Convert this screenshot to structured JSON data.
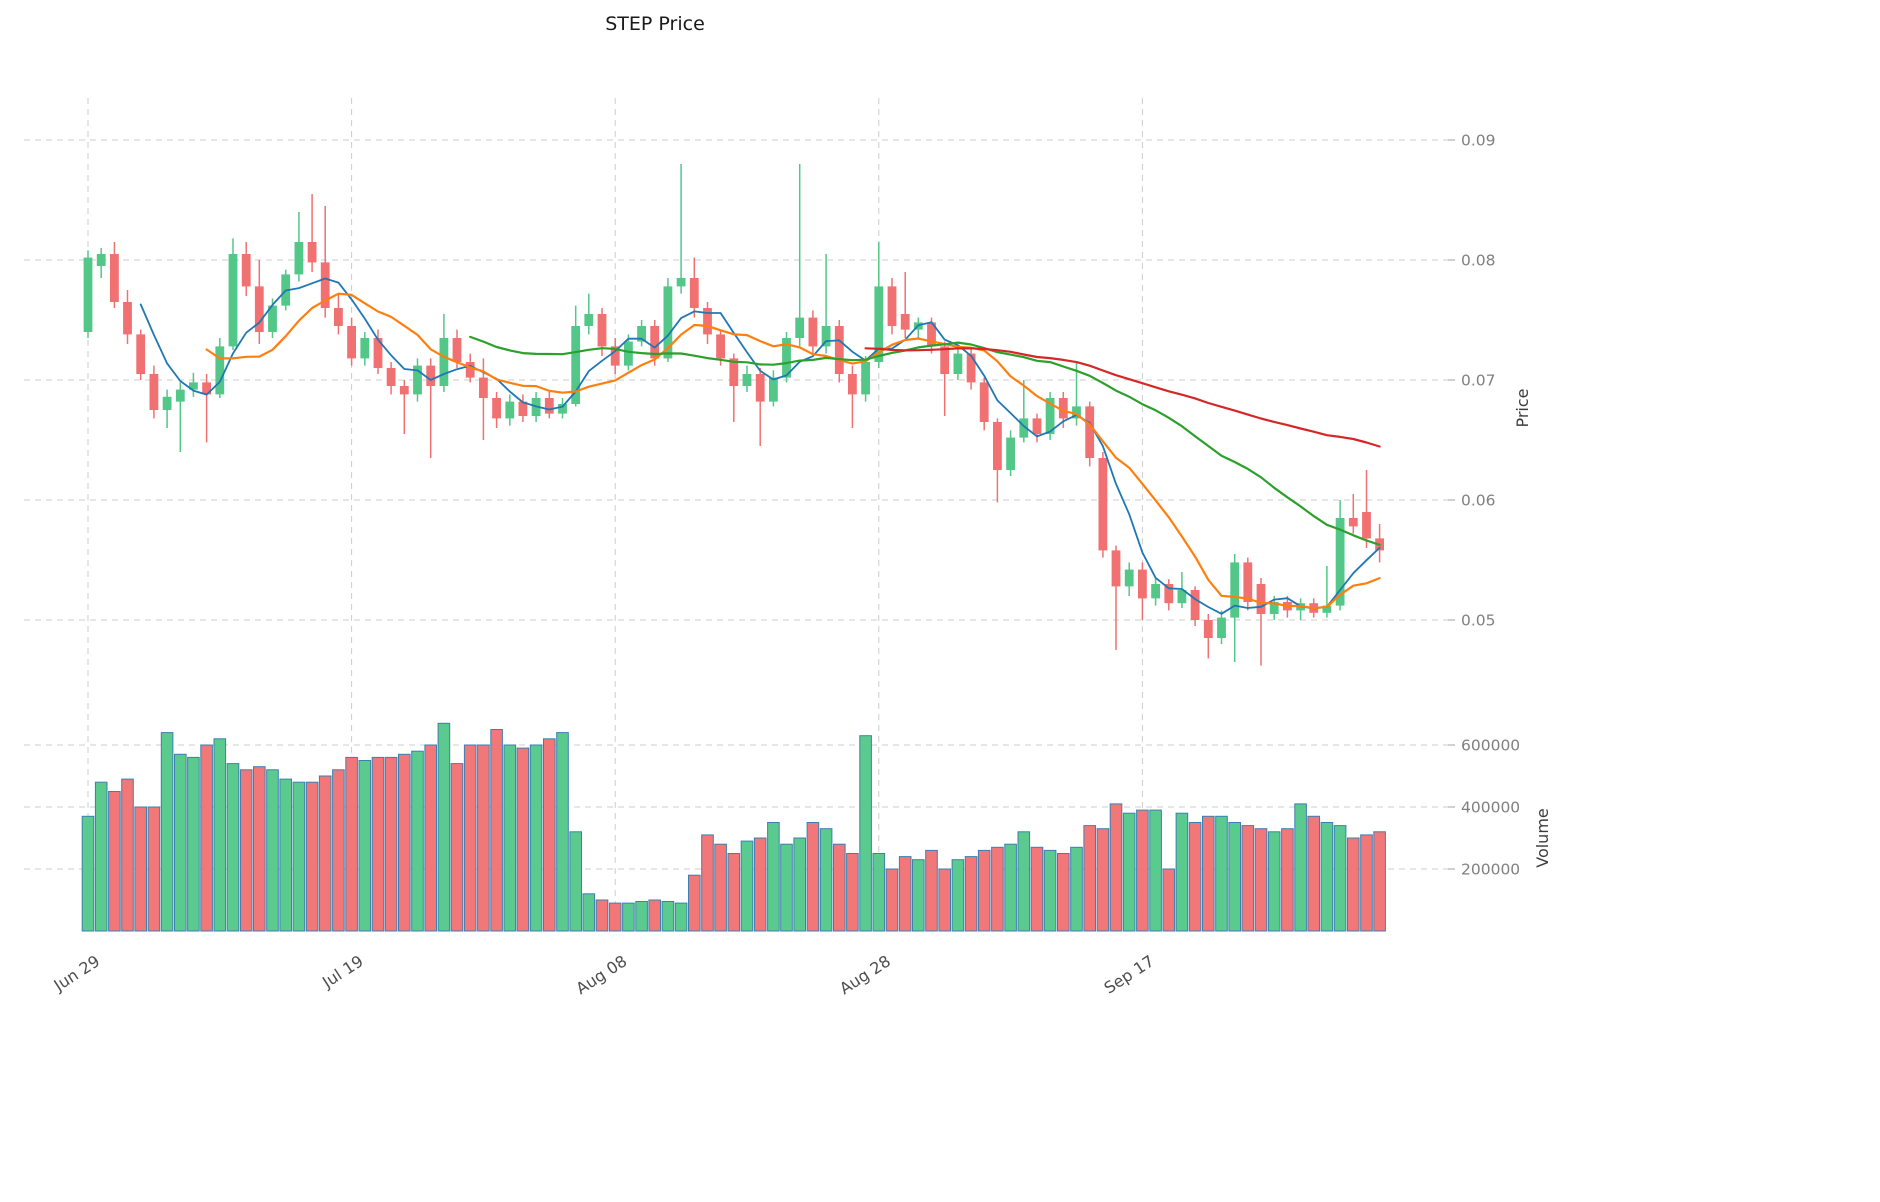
{
  "title": "STEP Price",
  "axes": {
    "price_label": "Price",
    "volume_label": "Volume"
  },
  "chart_data": {
    "type": "candlestick",
    "title": "STEP Price",
    "subtitle": "",
    "ylabel": "Price",
    "ylabel2": "Volume",
    "grid": true,
    "legend": "none",
    "x_tick_labels": [
      "Jun 29",
      "Jul 19",
      "Aug 08",
      "Aug 28",
      "Sep 17"
    ],
    "x_tick_indices": [
      0,
      20,
      40,
      60,
      80
    ],
    "price_ticks": [
      0.05,
      0.06,
      0.07,
      0.08,
      0.09
    ],
    "price_tick_labels": [
      "0.05",
      "0.06",
      "0.07",
      "0.08",
      "0.09"
    ],
    "price_ylim": [
      0.044,
      0.0925
    ],
    "volume_ticks": [
      200000,
      400000,
      600000
    ],
    "volume_tick_labels": [
      "200000",
      "400000",
      "600000"
    ],
    "volume_ylim": [
      0,
      700000
    ],
    "ma_windows": [
      5,
      10,
      30,
      60
    ],
    "ma_colors": [
      "#1f77b4",
      "#ff7f0e",
      "#2ca02c",
      "#d62728"
    ],
    "up_color": "#52c788",
    "down_color": "#f17072",
    "volume_edge_color": "#3c7fb1",
    "open": [
      0.074,
      0.0795,
      0.0805,
      0.0765,
      0.0738,
      0.0705,
      0.0675,
      0.0682,
      0.0692,
      0.0698,
      0.0688,
      0.0728,
      0.0805,
      0.0778,
      0.074,
      0.0762,
      0.0788,
      0.0815,
      0.0798,
      0.076,
      0.0745,
      0.0718,
      0.0735,
      0.071,
      0.0695,
      0.0688,
      0.0712,
      0.0695,
      0.0735,
      0.0715,
      0.0702,
      0.0685,
      0.0668,
      0.0682,
      0.067,
      0.0685,
      0.0672,
      0.068,
      0.0745,
      0.0755,
      0.0728,
      0.0712,
      0.0732,
      0.0745,
      0.0718,
      0.0778,
      0.0785,
      0.076,
      0.0738,
      0.0718,
      0.0695,
      0.0705,
      0.0682,
      0.0702,
      0.0735,
      0.0752,
      0.0728,
      0.0745,
      0.0705,
      0.0688,
      0.0715,
      0.0778,
      0.0755,
      0.0742,
      0.0748,
      0.0728,
      0.0705,
      0.0722,
      0.0698,
      0.0665,
      0.0625,
      0.0652,
      0.0668,
      0.0655,
      0.0685,
      0.0668,
      0.0678,
      0.0635,
      0.0558,
      0.0528,
      0.0542,
      0.0518,
      0.053,
      0.0514,
      0.0525,
      0.05,
      0.0485,
      0.0502,
      0.0548,
      0.053,
      0.0505,
      0.0515,
      0.0508,
      0.0514,
      0.0506,
      0.0512,
      0.0585,
      0.059,
      0.0568
    ],
    "high": [
      0.0808,
      0.081,
      0.0815,
      0.0775,
      0.0742,
      0.0712,
      0.0692,
      0.0698,
      0.0706,
      0.0705,
      0.0735,
      0.0818,
      0.0815,
      0.08,
      0.0768,
      0.0792,
      0.084,
      0.0855,
      0.0845,
      0.0772,
      0.0752,
      0.074,
      0.0742,
      0.0715,
      0.07,
      0.0718,
      0.0718,
      0.0755,
      0.0742,
      0.0722,
      0.0718,
      0.069,
      0.0688,
      0.0688,
      0.069,
      0.069,
      0.0685,
      0.0762,
      0.0772,
      0.076,
      0.0735,
      0.0738,
      0.075,
      0.075,
      0.0785,
      0.088,
      0.0802,
      0.0765,
      0.0742,
      0.0722,
      0.0712,
      0.071,
      0.0708,
      0.074,
      0.088,
      0.0758,
      0.0805,
      0.075,
      0.0712,
      0.072,
      0.0815,
      0.0785,
      0.079,
      0.0752,
      0.0752,
      0.0732,
      0.0728,
      0.0726,
      0.0702,
      0.0668,
      0.0658,
      0.07,
      0.0672,
      0.069,
      0.069,
      0.0715,
      0.0682,
      0.064,
      0.0562,
      0.0548,
      0.0548,
      0.0535,
      0.0534,
      0.054,
      0.0528,
      0.0505,
      0.0508,
      0.0555,
      0.0552,
      0.0535,
      0.052,
      0.052,
      0.0518,
      0.0518,
      0.0545,
      0.06,
      0.0605,
      0.0625,
      0.058
    ],
    "low": [
      0.0735,
      0.0785,
      0.076,
      0.073,
      0.07,
      0.0668,
      0.066,
      0.064,
      0.0686,
      0.0648,
      0.0685,
      0.0725,
      0.077,
      0.073,
      0.0735,
      0.0758,
      0.0782,
      0.079,
      0.0752,
      0.0738,
      0.0712,
      0.0712,
      0.0705,
      0.0688,
      0.0655,
      0.0682,
      0.0635,
      0.069,
      0.071,
      0.0698,
      0.065,
      0.066,
      0.0662,
      0.0665,
      0.0665,
      0.0668,
      0.0668,
      0.0678,
      0.0738,
      0.072,
      0.0705,
      0.0708,
      0.0728,
      0.0712,
      0.0715,
      0.0772,
      0.0752,
      0.073,
      0.0712,
      0.0665,
      0.069,
      0.0645,
      0.0678,
      0.0698,
      0.0728,
      0.0722,
      0.0722,
      0.0698,
      0.066,
      0.0682,
      0.071,
      0.0738,
      0.0735,
      0.0735,
      0.0722,
      0.067,
      0.07,
      0.0692,
      0.0658,
      0.0598,
      0.062,
      0.0648,
      0.0648,
      0.065,
      0.066,
      0.0662,
      0.0628,
      0.0552,
      0.0475,
      0.052,
      0.05,
      0.0512,
      0.0508,
      0.051,
      0.0495,
      0.0468,
      0.048,
      0.0465,
      0.0508,
      0.0462,
      0.05,
      0.0502,
      0.05,
      0.0502,
      0.0502,
      0.0508,
      0.0572,
      0.056,
      0.0548
    ],
    "close": [
      0.0802,
      0.0805,
      0.0765,
      0.0738,
      0.0705,
      0.0675,
      0.0686,
      0.0692,
      0.0698,
      0.0688,
      0.0728,
      0.0805,
      0.0778,
      0.074,
      0.0762,
      0.0788,
      0.0815,
      0.0798,
      0.076,
      0.0745,
      0.0718,
      0.0735,
      0.071,
      0.0695,
      0.0688,
      0.0712,
      0.0695,
      0.0735,
      0.0715,
      0.0702,
      0.0685,
      0.0668,
      0.0682,
      0.067,
      0.0685,
      0.0672,
      0.068,
      0.0745,
      0.0755,
      0.0728,
      0.0712,
      0.0732,
      0.0745,
      0.0718,
      0.0778,
      0.0785,
      0.076,
      0.0738,
      0.0718,
      0.0695,
      0.0705,
      0.0682,
      0.0702,
      0.0735,
      0.0752,
      0.0728,
      0.0745,
      0.0705,
      0.0688,
      0.0715,
      0.0778,
      0.0745,
      0.0742,
      0.0748,
      0.0728,
      0.0705,
      0.0722,
      0.0698,
      0.0665,
      0.0625,
      0.0652,
      0.0668,
      0.0655,
      0.0685,
      0.0668,
      0.0678,
      0.0635,
      0.0558,
      0.0528,
      0.0542,
      0.0518,
      0.053,
      0.0514,
      0.0525,
      0.05,
      0.0485,
      0.0502,
      0.0548,
      0.0515,
      0.0505,
      0.0515,
      0.0508,
      0.0514,
      0.0506,
      0.0512,
      0.0585,
      0.0578,
      0.0568,
      0.0558
    ],
    "volume": [
      370000,
      480000,
      450000,
      490000,
      400000,
      400000,
      640000,
      570000,
      560000,
      600000,
      620000,
      540000,
      520000,
      530000,
      520000,
      490000,
      480000,
      480000,
      500000,
      520000,
      560000,
      550000,
      560000,
      560000,
      570000,
      580000,
      600000,
      670000,
      540000,
      600000,
      600000,
      650000,
      600000,
      590000,
      600000,
      620000,
      640000,
      320000,
      120000,
      100000,
      90000,
      90000,
      95000,
      100000,
      95000,
      90000,
      180000,
      310000,
      280000,
      250000,
      290000,
      300000,
      350000,
      280000,
      300000,
      350000,
      330000,
      280000,
      250000,
      630000,
      250000,
      200000,
      240000,
      230000,
      260000,
      200000,
      230000,
      240000,
      260000,
      270000,
      280000,
      320000,
      270000,
      260000,
      250000,
      270000,
      340000,
      330000,
      410000,
      380000,
      390000,
      390000,
      200000,
      380000,
      350000,
      370000,
      370000,
      350000,
      340000,
      330000,
      320000,
      330000,
      410000,
      370000,
      350000,
      340000,
      300000,
      310000,
      320000
    ]
  }
}
